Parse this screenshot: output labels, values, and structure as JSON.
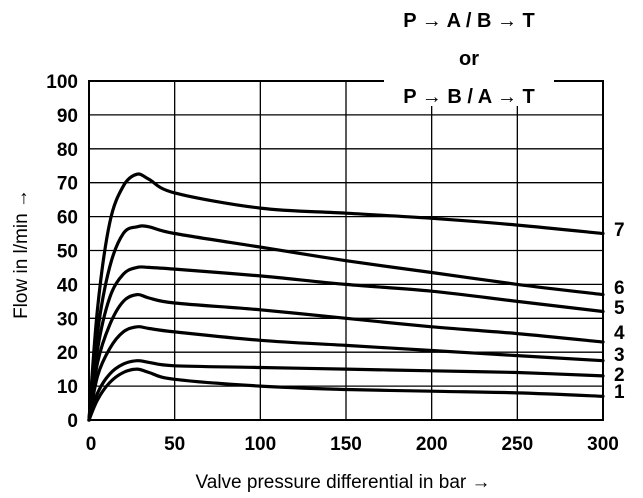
{
  "chart_data": {
    "type": "line",
    "title_lines": [
      "P → A / B → T",
      "or",
      "P → B / A → T"
    ],
    "xlabel": "Valve pressure differential in bar →",
    "ylabel": "Flow in l/min →",
    "xlim": [
      0,
      300
    ],
    "ylim": [
      0,
      100
    ],
    "xticks": [
      0,
      50,
      100,
      150,
      200,
      250,
      300
    ],
    "yticks": [
      0,
      10,
      20,
      30,
      40,
      50,
      60,
      70,
      80,
      90,
      100
    ],
    "grid": true,
    "series": [
      {
        "name": "1",
        "x": [
          0,
          5,
          12,
          20,
          28,
          35,
          50,
          100,
          150,
          200,
          250,
          300
        ],
        "y": [
          0,
          6,
          11,
          14,
          15,
          14,
          12,
          10,
          9,
          8.5,
          8,
          7
        ]
      },
      {
        "name": "2",
        "x": [
          0,
          5,
          12,
          20,
          28,
          35,
          50,
          100,
          150,
          200,
          250,
          300
        ],
        "y": [
          0,
          8,
          13.5,
          16.5,
          17.5,
          17,
          16,
          15.5,
          15,
          14.5,
          14,
          13
        ]
      },
      {
        "name": "3",
        "x": [
          0,
          5,
          12,
          20,
          28,
          35,
          50,
          100,
          150,
          200,
          250,
          300
        ],
        "y": [
          0,
          13,
          21,
          26,
          27.5,
          27,
          26,
          23.5,
          22,
          20.5,
          19,
          17.5
        ]
      },
      {
        "name": "4",
        "x": [
          0,
          5,
          12,
          20,
          28,
          35,
          50,
          100,
          150,
          200,
          250,
          300
        ],
        "y": [
          0,
          17,
          28,
          35,
          37,
          36,
          34.5,
          32.5,
          30,
          27.5,
          25.5,
          23
        ]
      },
      {
        "name": "5",
        "x": [
          0,
          5,
          12,
          20,
          28,
          35,
          50,
          100,
          150,
          200,
          250,
          300
        ],
        "y": [
          0,
          21,
          36,
          43,
          45,
          45,
          44.5,
          42.5,
          40,
          38,
          35,
          32
        ]
      },
      {
        "name": "6",
        "x": [
          0,
          5,
          12,
          20,
          28,
          35,
          50,
          100,
          150,
          200,
          250,
          300
        ],
        "y": [
          0,
          26,
          45,
          55,
          57,
          57,
          55,
          51,
          47,
          43.5,
          40,
          37
        ]
      },
      {
        "name": "7",
        "x": [
          0,
          5,
          12,
          20,
          28,
          35,
          50,
          100,
          150,
          200,
          250,
          300
        ],
        "y": [
          0,
          33,
          58,
          69,
          72.5,
          71,
          67,
          62.5,
          61,
          59.5,
          57.5,
          55
        ]
      }
    ]
  }
}
